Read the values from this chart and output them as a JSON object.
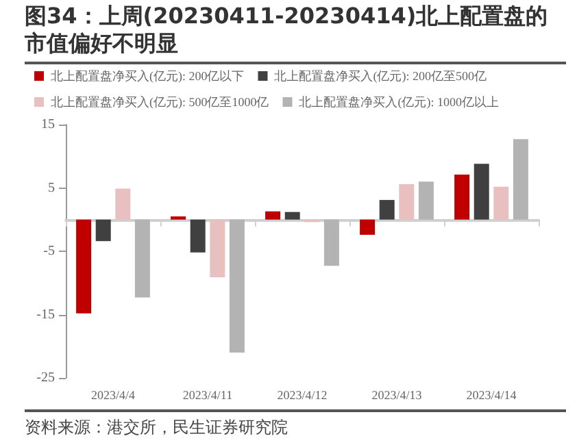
{
  "chart_data": {
    "type": "bar",
    "title": "图34：上周(20230411-20230414)北上配置盘的市值偏好不明显",
    "categories": [
      "2023/4/4",
      "2023/4/11",
      "2023/4/12",
      "2023/4/13",
      "2023/4/14"
    ],
    "series": [
      {
        "name": "北上配置盘净买入(亿元): 200亿以下",
        "color": "#c00000",
        "values": [
          -14.8,
          0.5,
          1.3,
          -2.4,
          7.1
        ]
      },
      {
        "name": "北上配置盘净买入(亿元): 200亿至500亿",
        "color": "#404040",
        "values": [
          -3.4,
          -5.2,
          1.2,
          3.1,
          8.8
        ]
      },
      {
        "name": "北上配置盘净买入(亿元): 500亿至1000亿",
        "color": "#e8c0c0",
        "values": [
          4.9,
          -9.1,
          -0.4,
          5.6,
          5.2
        ]
      },
      {
        "name": "北上配置盘净买入(亿元): 1000亿以上",
        "color": "#b3b3b3",
        "values": [
          -12.3,
          -21,
          -7.3,
          6.0,
          12.7
        ]
      }
    ],
    "ylim": [
      -25,
      15
    ],
    "yticks": [
      -25,
      -15,
      -5,
      5,
      15
    ],
    "grid": false,
    "legend": "top",
    "annotations": [
      "资料来源：港交所，民生证券研究院"
    ]
  }
}
